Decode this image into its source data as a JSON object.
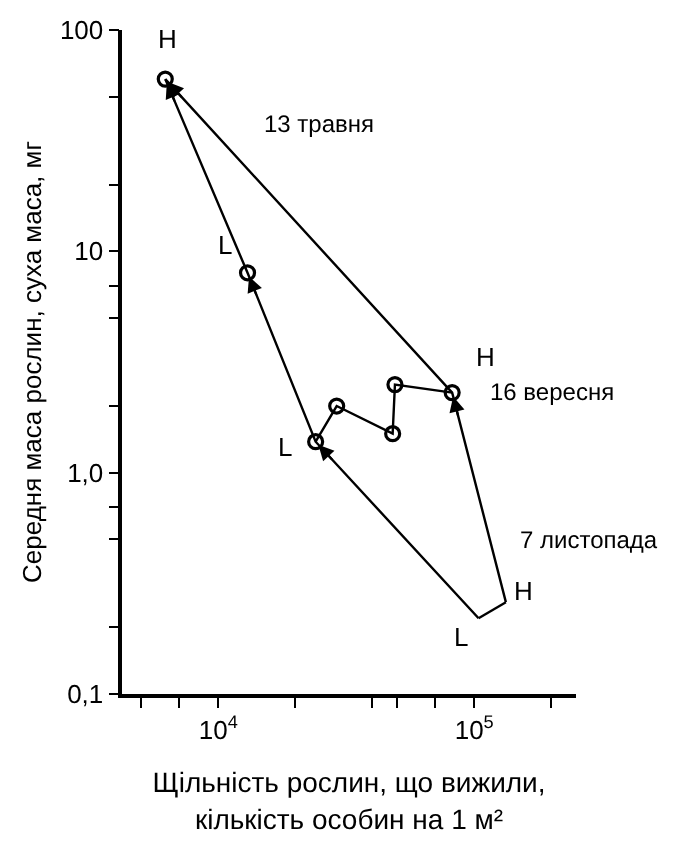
{
  "chart_data": {
    "type": "line",
    "xlabel": "Щільність рослин, що вижили,\nкількість особин на 1 м²",
    "ylabel": "Середня маса рослин, суха маса, мг",
    "log": "xy",
    "xlim": [
      4200,
      250000
    ],
    "xticks": [
      {
        "value": 5000,
        "label": null
      },
      {
        "value": 7000,
        "label": null
      },
      {
        "value": 10000,
        "label": "10$^{4}$"
      },
      {
        "value": 20000,
        "label": null
      },
      {
        "value": 40000,
        "label": null
      },
      {
        "value": 50000,
        "label": null
      },
      {
        "value": 70000,
        "label": null
      },
      {
        "value": 100000,
        "label": "10$^{5}$"
      },
      {
        "value": 200000,
        "label": null
      }
    ],
    "ylim": [
      0.1,
      100
    ],
    "yticks": [
      {
        "value": 0.1,
        "label": "0,1"
      },
      {
        "value": 0.2,
        "label": null
      },
      {
        "value": 0.5,
        "label": null
      },
      {
        "value": 0.7,
        "label": null
      },
      {
        "value": 1,
        "label": "1,0"
      },
      {
        "value": 2,
        "label": null
      },
      {
        "value": 5,
        "label": null
      },
      {
        "value": 7,
        "label": null
      },
      {
        "value": 10,
        "label": "10"
      },
      {
        "value": 20,
        "label": null
      },
      {
        "value": 50,
        "label": null
      },
      {
        "value": 100,
        "label": "100"
      }
    ],
    "series": [
      {
        "color": "#000000",
        "marker": "none",
        "x": [
          133000,
          82000,
          6200
        ],
        "values": [
          0.26,
          2.3,
          60
        ]
      },
      {
        "color": "#000000",
        "marker": "none",
        "x": [
          104000,
          24000,
          13000,
          6200
        ],
        "values": [
          0.22,
          1.38,
          8,
          60
        ]
      },
      {
        "color": "#000000",
        "marker": "circle",
        "x": [
          24000,
          29000,
          48000,
          49000,
          82000
        ],
        "values": [
          1.38,
          2.0,
          1.5,
          2.5,
          2.3
        ]
      },
      {
        "color": "#000000",
        "marker": "none",
        "x": [
          104000,
          133000
        ],
        "values": [
          0.22,
          0.26
        ]
      },
      {
        "type": "scatter",
        "color": "#000000",
        "marker": "circle",
        "x": [
          6200,
          13000
        ],
        "values": [
          60,
          8
        ]
      }
    ],
    "annotations": [
      "H",
      "L",
      "L",
      "H",
      "H",
      "L",
      "13 травня",
      "16 вересня",
      "7 листопада"
    ]
  }
}
